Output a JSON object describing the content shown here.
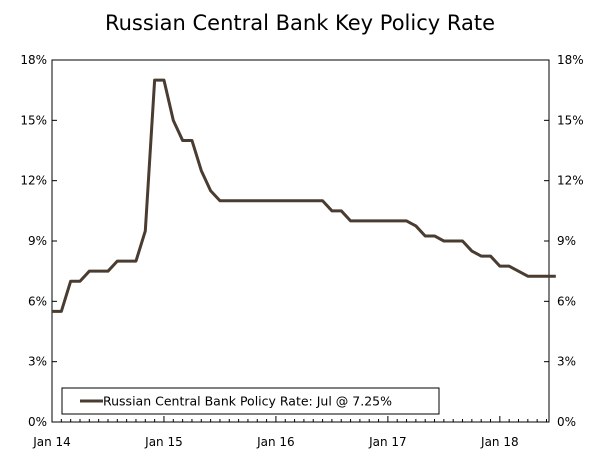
{
  "chart_data": {
    "type": "line",
    "title": "Russian Central Bank Key Policy Rate",
    "xlabel": "",
    "ylabel": "",
    "ylim": [
      0,
      18
    ],
    "y_ticks": [
      "0%",
      "3%",
      "6%",
      "9%",
      "12%",
      "15%",
      "18%"
    ],
    "x_ticks": [
      "Jan 14",
      "Jan 15",
      "Jan 16",
      "Jan 17",
      "Jan 18"
    ],
    "grid": false,
    "legend_position": "bottom-left",
    "series": [
      {
        "name": "Russian Central Bank Policy Rate: Jul @ 7.25%",
        "color": "#4a3c30",
        "x": [
          "2014-01",
          "2014-02",
          "2014-03",
          "2014-04",
          "2014-05",
          "2014-06",
          "2014-07",
          "2014-08",
          "2014-09",
          "2014-10",
          "2014-11",
          "2014-12",
          "2015-01",
          "2015-02",
          "2015-03",
          "2015-04",
          "2015-05",
          "2015-06",
          "2015-07",
          "2015-08",
          "2015-09",
          "2015-10",
          "2015-11",
          "2015-12",
          "2016-01",
          "2016-02",
          "2016-03",
          "2016-04",
          "2016-05",
          "2016-06",
          "2016-07",
          "2016-08",
          "2016-09",
          "2016-10",
          "2016-11",
          "2016-12",
          "2017-01",
          "2017-02",
          "2017-03",
          "2017-04",
          "2017-05",
          "2017-06",
          "2017-07",
          "2017-08",
          "2017-09",
          "2017-10",
          "2017-11",
          "2017-12",
          "2018-01",
          "2018-02",
          "2018-03",
          "2018-04",
          "2018-05",
          "2018-06",
          "2018-07"
        ],
        "values": [
          5.5,
          5.5,
          7.0,
          7.0,
          7.5,
          7.5,
          7.5,
          8.0,
          8.0,
          8.0,
          9.5,
          17.0,
          17.0,
          15.0,
          14.0,
          14.0,
          12.5,
          11.5,
          11.0,
          11.0,
          11.0,
          11.0,
          11.0,
          11.0,
          11.0,
          11.0,
          11.0,
          11.0,
          11.0,
          11.0,
          10.5,
          10.5,
          10.0,
          10.0,
          10.0,
          10.0,
          10.0,
          10.0,
          10.0,
          9.75,
          9.25,
          9.25,
          9.0,
          9.0,
          9.0,
          8.5,
          8.25,
          8.25,
          7.75,
          7.75,
          7.5,
          7.25,
          7.25,
          7.25,
          7.25
        ]
      }
    ]
  }
}
